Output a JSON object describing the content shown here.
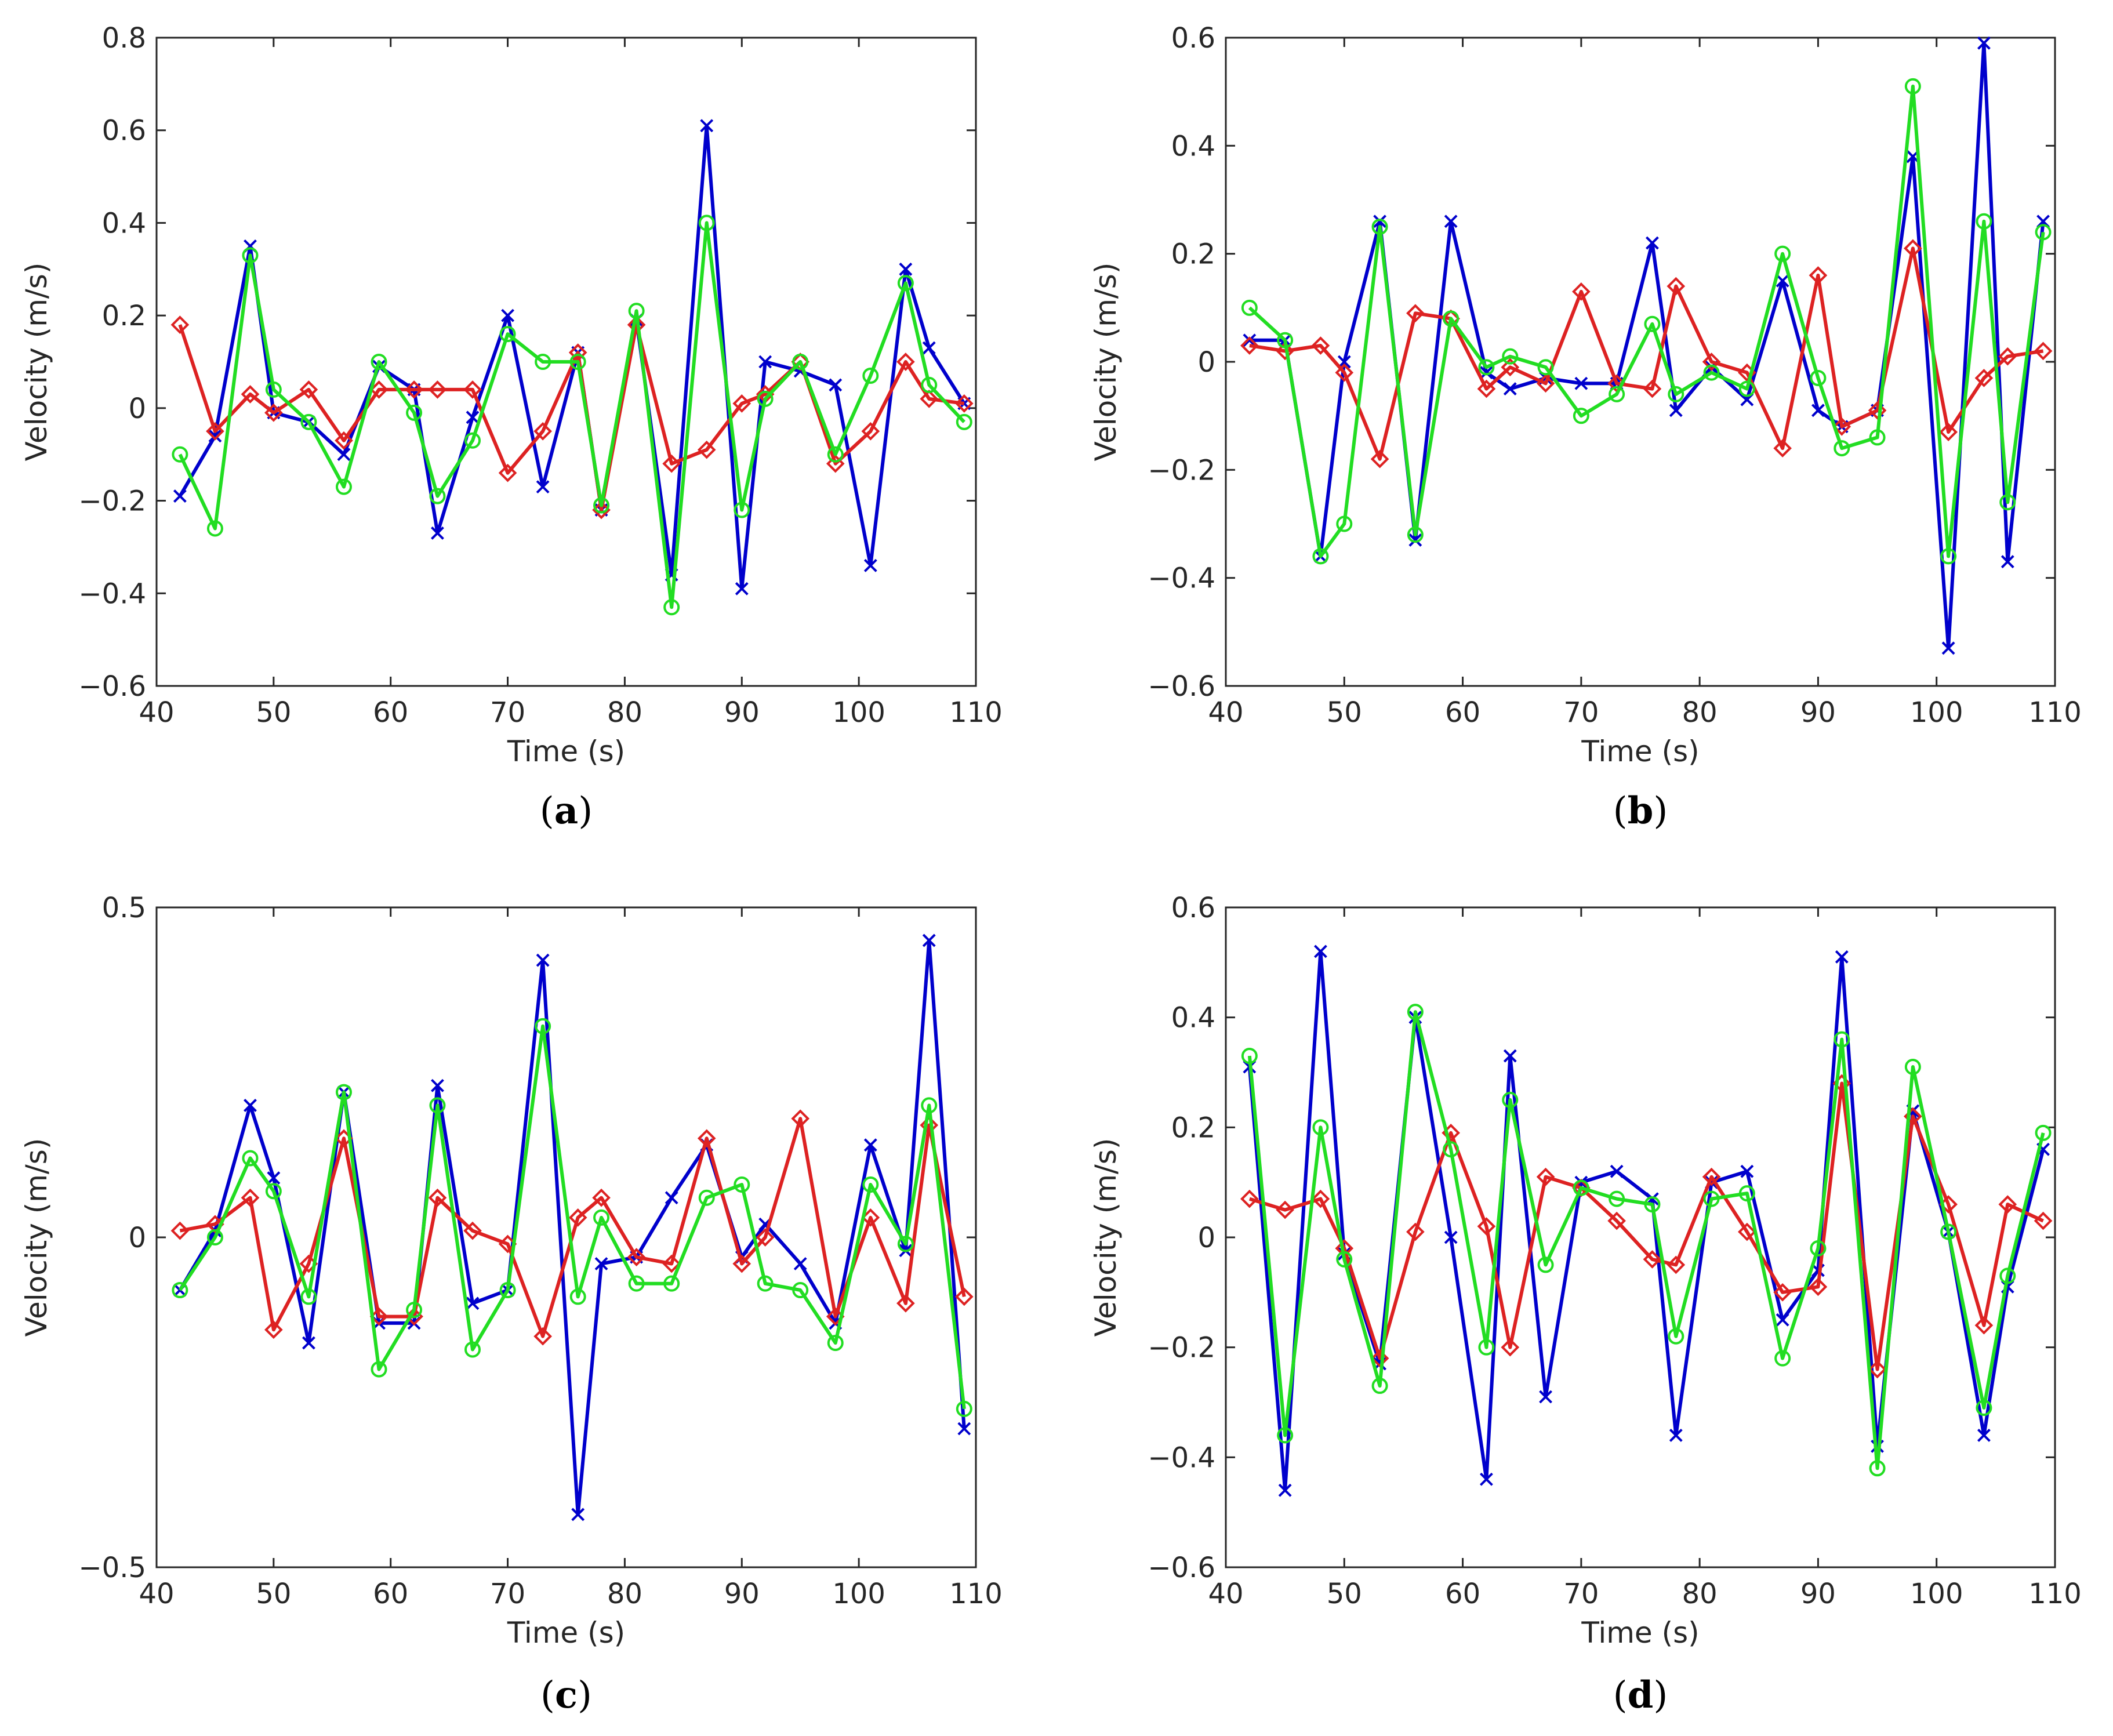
{
  "chart_data": [
    {
      "type": "line",
      "panel_label": "a",
      "xlabel": "Time (s)",
      "ylabel": "Velocity (m/s)",
      "xlim": [
        40,
        110
      ],
      "ylim": [
        -0.6,
        0.8
      ],
      "xticks": [
        40,
        50,
        60,
        70,
        80,
        90,
        100,
        110
      ],
      "yticks": [
        -0.6,
        -0.4,
        -0.2,
        0,
        0.2,
        0.4,
        0.6,
        0.8
      ],
      "ytick_labels": [
        "−0.6",
        "−0.4",
        "−0.2",
        "0",
        "0.2",
        "0.4",
        "0.6",
        "0.8"
      ],
      "grid": false,
      "series": [
        {
          "name": "blue",
          "color": "#0000cc",
          "marker": "x",
          "x": [
            42,
            45,
            48,
            50,
            53,
            56,
            59,
            62,
            64,
            67,
            70,
            73,
            76,
            78,
            81,
            84,
            87,
            90,
            92,
            95,
            98,
            101,
            104,
            106,
            109
          ],
          "y": [
            -0.19,
            -0.06,
            0.35,
            -0.01,
            -0.03,
            -0.1,
            0.09,
            0.04,
            -0.27,
            -0.02,
            0.2,
            -0.17,
            0.12,
            -0.22,
            0.19,
            -0.36,
            0.61,
            -0.39,
            0.1,
            0.08,
            0.05,
            -0.34,
            0.3,
            0.13,
            0.01
          ]
        },
        {
          "name": "red",
          "color": "#dd2222",
          "marker": "diamond",
          "x": [
            42,
            45,
            48,
            50,
            53,
            56,
            59,
            62,
            64,
            67,
            70,
            73,
            76,
            78,
            81,
            84,
            87,
            90,
            92,
            95,
            98,
            101,
            104,
            106,
            109
          ],
          "y": [
            0.18,
            -0.05,
            0.03,
            -0.01,
            0.04,
            -0.07,
            0.04,
            0.04,
            0.04,
            0.04,
            -0.14,
            -0.05,
            0.12,
            -0.22,
            0.18,
            -0.12,
            -0.09,
            0.01,
            0.03,
            0.1,
            -0.12,
            -0.05,
            0.1,
            0.02,
            0.01
          ]
        },
        {
          "name": "green",
          "color": "#22dd22",
          "marker": "circle",
          "x": [
            42,
            45,
            48,
            50,
            53,
            56,
            59,
            62,
            64,
            67,
            70,
            73,
            76,
            78,
            81,
            84,
            87,
            90,
            92,
            95,
            98,
            101,
            104,
            106,
            109
          ],
          "y": [
            -0.1,
            -0.26,
            0.33,
            0.04,
            -0.03,
            -0.17,
            0.1,
            -0.01,
            -0.19,
            -0.07,
            0.16,
            0.1,
            0.1,
            -0.21,
            0.21,
            -0.43,
            0.4,
            -0.22,
            0.02,
            0.1,
            -0.1,
            0.07,
            0.27,
            0.05,
            -0.03
          ]
        }
      ]
    },
    {
      "type": "line",
      "panel_label": "b",
      "xlabel": "Time (s)",
      "ylabel": "Velocity (m/s)",
      "xlim": [
        40,
        110
      ],
      "ylim": [
        -0.6,
        0.6
      ],
      "xticks": [
        40,
        50,
        60,
        70,
        80,
        90,
        100,
        110
      ],
      "yticks": [
        -0.6,
        -0.4,
        -0.2,
        0,
        0.2,
        0.4,
        0.6
      ],
      "ytick_labels": [
        "−0.6",
        "−0.4",
        "−0.2",
        "0",
        "0.2",
        "0.4",
        "0.6"
      ],
      "grid": false,
      "series": [
        {
          "name": "blue",
          "color": "#0000cc",
          "marker": "x",
          "x": [
            42,
            45,
            48,
            50,
            53,
            56,
            59,
            62,
            64,
            67,
            70,
            73,
            76,
            78,
            81,
            84,
            87,
            90,
            92,
            95,
            98,
            101,
            104,
            106,
            109
          ],
          "y": [
            0.04,
            0.04,
            -0.36,
            0.0,
            0.26,
            -0.33,
            0.26,
            -0.02,
            -0.05,
            -0.03,
            -0.04,
            -0.04,
            0.22,
            -0.09,
            -0.01,
            -0.07,
            0.15,
            -0.09,
            -0.12,
            -0.09,
            0.38,
            -0.53,
            0.59,
            -0.37,
            0.26
          ]
        },
        {
          "name": "red",
          "color": "#dd2222",
          "marker": "diamond",
          "x": [
            42,
            45,
            48,
            50,
            53,
            56,
            59,
            62,
            64,
            67,
            70,
            73,
            76,
            78,
            81,
            84,
            87,
            90,
            92,
            95,
            98,
            101,
            104,
            106,
            109
          ],
          "y": [
            0.03,
            0.02,
            0.03,
            -0.02,
            -0.18,
            0.09,
            0.08,
            -0.05,
            -0.01,
            -0.04,
            0.13,
            -0.04,
            -0.05,
            0.14,
            0.0,
            -0.02,
            -0.16,
            0.16,
            -0.12,
            -0.09,
            0.21,
            -0.13,
            -0.03,
            0.01,
            0.02
          ]
        },
        {
          "name": "green",
          "color": "#22dd22",
          "marker": "circle",
          "x": [
            42,
            45,
            48,
            50,
            53,
            56,
            59,
            62,
            64,
            67,
            70,
            73,
            76,
            78,
            81,
            84,
            87,
            90,
            92,
            95,
            98,
            101,
            104,
            106,
            109
          ],
          "y": [
            0.1,
            0.04,
            -0.36,
            -0.3,
            0.25,
            -0.32,
            0.08,
            -0.01,
            0.01,
            -0.01,
            -0.1,
            -0.06,
            0.07,
            -0.06,
            -0.02,
            -0.05,
            0.2,
            -0.03,
            -0.16,
            -0.14,
            0.51,
            -0.36,
            0.26,
            -0.26,
            0.24
          ]
        }
      ]
    },
    {
      "type": "line",
      "panel_label": "c",
      "xlabel": "Time (s)",
      "ylabel": "Velocity (m/s)",
      "xlim": [
        40,
        110
      ],
      "ylim": [
        -0.5,
        0.5
      ],
      "xticks": [
        40,
        50,
        60,
        70,
        80,
        90,
        100,
        110
      ],
      "yticks": [
        -0.5,
        0,
        0.5
      ],
      "ytick_labels": [
        "−0.5",
        "0",
        "0.5"
      ],
      "grid": false,
      "series": [
        {
          "name": "blue",
          "color": "#0000cc",
          "marker": "x",
          "x": [
            42,
            45,
            48,
            50,
            53,
            56,
            59,
            62,
            64,
            67,
            70,
            73,
            76,
            78,
            81,
            84,
            87,
            90,
            92,
            95,
            98,
            101,
            104,
            106,
            109
          ],
          "y": [
            -0.08,
            0.01,
            0.2,
            0.09,
            -0.16,
            0.22,
            -0.13,
            -0.13,
            0.23,
            -0.1,
            -0.08,
            0.42,
            -0.42,
            -0.04,
            -0.03,
            0.06,
            0.14,
            -0.03,
            0.02,
            -0.04,
            -0.13,
            0.14,
            -0.02,
            0.45,
            -0.29
          ]
        },
        {
          "name": "red",
          "color": "#dd2222",
          "marker": "diamond",
          "x": [
            42,
            45,
            48,
            50,
            53,
            56,
            59,
            62,
            64,
            67,
            70,
            73,
            76,
            78,
            81,
            84,
            87,
            90,
            92,
            95,
            98,
            101,
            104,
            106,
            109
          ],
          "y": [
            0.01,
            0.02,
            0.06,
            -0.14,
            -0.04,
            0.15,
            -0.12,
            -0.12,
            0.06,
            0.01,
            -0.01,
            -0.15,
            0.03,
            0.06,
            -0.03,
            -0.04,
            0.15,
            -0.04,
            0.0,
            0.18,
            -0.12,
            0.03,
            -0.1,
            0.17,
            -0.09
          ]
        },
        {
          "name": "green",
          "color": "#22dd22",
          "marker": "circle",
          "x": [
            42,
            45,
            48,
            50,
            53,
            56,
            59,
            62,
            64,
            67,
            70,
            73,
            76,
            78,
            81,
            84,
            87,
            90,
            92,
            95,
            98,
            101,
            104,
            106,
            109
          ],
          "y": [
            -0.08,
            0.0,
            0.12,
            0.07,
            -0.09,
            0.22,
            -0.2,
            -0.11,
            0.2,
            -0.17,
            -0.08,
            0.32,
            -0.09,
            0.03,
            -0.07,
            -0.07,
            0.06,
            0.08,
            -0.07,
            -0.08,
            -0.16,
            0.08,
            -0.01,
            0.2,
            -0.26
          ]
        }
      ]
    },
    {
      "type": "line",
      "panel_label": "d",
      "xlabel": "Time (s)",
      "ylabel": "Velocity (m/s)",
      "xlim": [
        40,
        110
      ],
      "ylim": [
        -0.6,
        0.6
      ],
      "xticks": [
        40,
        50,
        60,
        70,
        80,
        90,
        100,
        110
      ],
      "yticks": [
        -0.6,
        -0.4,
        -0.2,
        0,
        0.2,
        0.4,
        0.6
      ],
      "ytick_labels": [
        "−0.6",
        "−0.4",
        "−0.2",
        "0",
        "0.2",
        "0.4",
        "0.6"
      ],
      "grid": false,
      "series": [
        {
          "name": "blue",
          "color": "#0000cc",
          "marker": "x",
          "x": [
            42,
            45,
            48,
            50,
            53,
            56,
            59,
            62,
            64,
            67,
            70,
            73,
            76,
            78,
            81,
            84,
            87,
            90,
            92,
            95,
            98,
            101,
            104,
            106,
            109
          ],
          "y": [
            0.31,
            -0.46,
            0.52,
            -0.03,
            -0.23,
            0.4,
            0.0,
            -0.44,
            0.33,
            -0.29,
            0.1,
            0.12,
            0.07,
            -0.36,
            0.1,
            0.12,
            -0.15,
            -0.06,
            0.51,
            -0.38,
            0.23,
            0.01,
            -0.36,
            -0.09,
            0.16
          ]
        },
        {
          "name": "red",
          "color": "#dd2222",
          "marker": "diamond",
          "x": [
            42,
            45,
            48,
            50,
            53,
            56,
            59,
            62,
            64,
            67,
            70,
            73,
            76,
            78,
            81,
            84,
            87,
            90,
            92,
            95,
            98,
            101,
            104,
            106,
            109
          ],
          "y": [
            0.07,
            0.05,
            0.07,
            -0.02,
            -0.22,
            0.01,
            0.19,
            0.02,
            -0.2,
            0.11,
            0.09,
            0.03,
            -0.04,
            -0.05,
            0.11,
            0.01,
            -0.1,
            -0.09,
            0.28,
            -0.24,
            0.22,
            0.06,
            -0.16,
            0.06,
            0.03
          ]
        },
        {
          "name": "green",
          "color": "#22dd22",
          "marker": "circle",
          "x": [
            42,
            45,
            48,
            50,
            53,
            56,
            59,
            62,
            64,
            67,
            70,
            73,
            76,
            78,
            81,
            84,
            87,
            90,
            92,
            95,
            98,
            101,
            104,
            106,
            109
          ],
          "y": [
            0.33,
            -0.36,
            0.2,
            -0.04,
            -0.27,
            0.41,
            0.16,
            -0.2,
            0.25,
            -0.05,
            0.09,
            0.07,
            0.06,
            -0.18,
            0.07,
            0.08,
            -0.22,
            -0.02,
            0.36,
            -0.42,
            0.31,
            0.01,
            -0.31,
            -0.07,
            0.19
          ]
        }
      ]
    }
  ]
}
